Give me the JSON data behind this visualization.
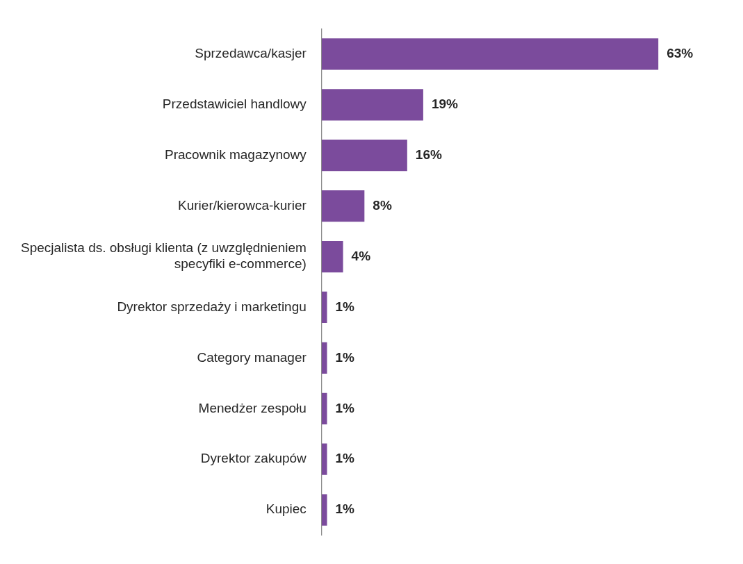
{
  "chart_data": {
    "type": "bar",
    "orientation": "horizontal",
    "categories": [
      "Sprzedawca/kasjer",
      "Przedstawiciel handlowy",
      "Pracownik magazynowy",
      "Kurier/kierowca-kurier",
      "Specjalista ds. obsługi klienta (z uwzględnieniem specyfiki e-commerce)",
      "Dyrektor sprzedaży i marketingu",
      "Category manager",
      "Menedżer zespołu",
      "Dyrektor zakupów",
      "Kupiec"
    ],
    "values": [
      63,
      19,
      16,
      8,
      4,
      1,
      1,
      1,
      1,
      1
    ],
    "color": "#7b4b9c",
    "value_labels": [
      "63%",
      "19%",
      "16%",
      "8%",
      "4%",
      "1%",
      "1%",
      "1%",
      "1%",
      "1%"
    ],
    "legend": false
  }
}
